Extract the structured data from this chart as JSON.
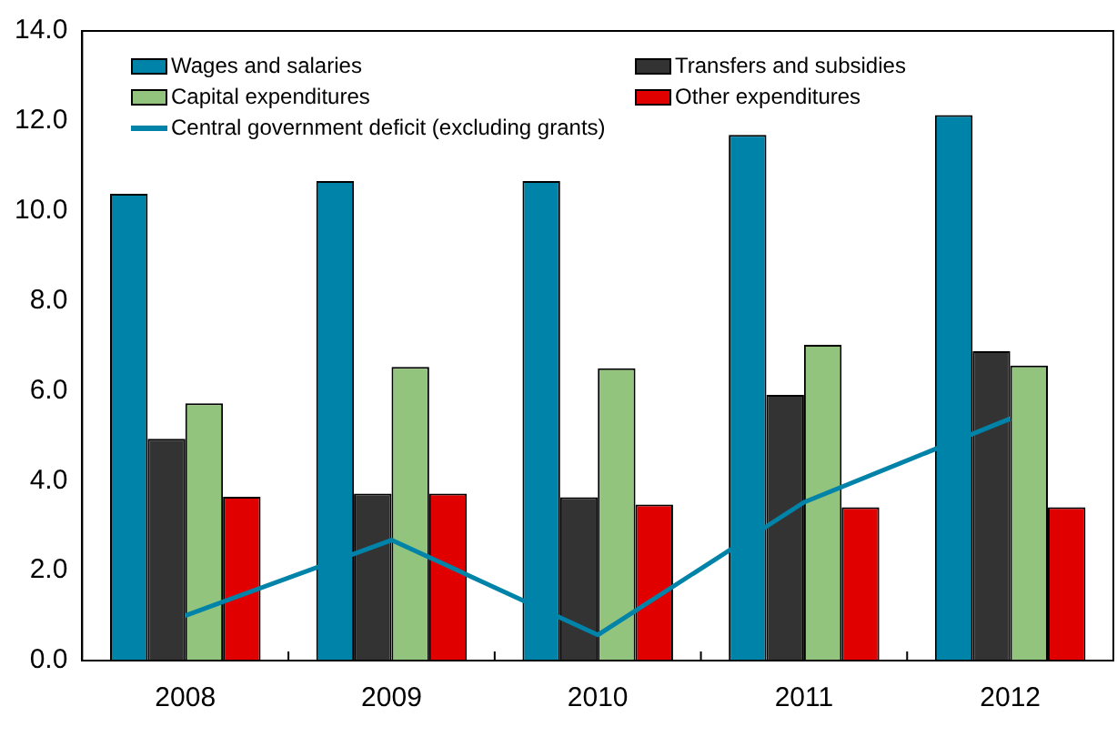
{
  "chart_data": {
    "type": "bar",
    "categories": [
      "2008",
      "2009",
      "2010",
      "2011",
      "2012"
    ],
    "series": [
      {
        "name": "Wages and salaries",
        "color": "#0083a9",
        "values": [
          10.38,
          10.66,
          10.66,
          11.69,
          12.13
        ]
      },
      {
        "name": "Transfers and subsidies",
        "color": "#333333",
        "values": [
          4.93,
          3.71,
          3.63,
          5.91,
          6.88
        ]
      },
      {
        "name": "Capital expenditures",
        "color": "#92c47d",
        "values": [
          5.72,
          6.53,
          6.5,
          7.02,
          6.56
        ]
      },
      {
        "name": "Other expenditures",
        "color": "#e00000",
        "values": [
          3.64,
          3.71,
          3.47,
          3.41,
          3.41
        ]
      },
      {
        "name": "Central government deficit (excluding grants)",
        "type": "line",
        "color": "#0083a9",
        "values": [
          1.0,
          2.68,
          0.57,
          3.52,
          5.38
        ]
      }
    ],
    "ylim": [
      0,
      14
    ],
    "yticks": [
      {
        "value": 0,
        "label": "0.0"
      },
      {
        "value": 2,
        "label": "2.0"
      },
      {
        "value": 4,
        "label": "4.0"
      },
      {
        "value": 6,
        "label": "6.0"
      },
      {
        "value": 8,
        "label": "8.0"
      },
      {
        "value": 10,
        "label": "10.0"
      },
      {
        "value": 12,
        "label": "12.0"
      },
      {
        "value": 14,
        "label": "14.0"
      }
    ],
    "grid": false,
    "legend": "top"
  }
}
